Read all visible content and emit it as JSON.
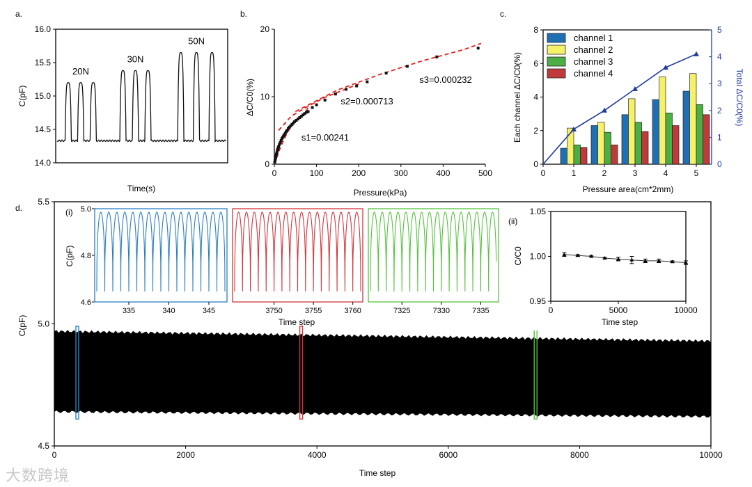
{
  "chart_data": [
    {
      "type": "line",
      "panel_label": "a.",
      "xlabel": "Time(s)",
      "ylabel": "C(pF)",
      "xlim": [
        0,
        55
      ],
      "ylim": [
        14.0,
        16.0
      ],
      "y_ticks": [
        "14.0",
        "14.5",
        "15.0",
        "15.5",
        "16.0"
      ],
      "baseline": 14.33,
      "peak_groups": [
        {
          "label": "20N",
          "times": [
            4,
            8,
            12
          ],
          "peak": 15.2
        },
        {
          "label": "30N",
          "times": [
            21.5,
            25.5,
            29.5
          ],
          "peak": 15.38
        },
        {
          "label": "50N",
          "times": [
            40,
            45,
            50
          ],
          "peak": 15.65
        }
      ]
    },
    {
      "type": "scatter",
      "panel_label": "b.",
      "xlabel": "Pressure(kPa)",
      "ylabel": "ΔC/C0(%)",
      "xlim": [
        0,
        500
      ],
      "ylim": [
        0,
        20
      ],
      "x_ticks": [
        "0",
        "100",
        "200",
        "300",
        "400",
        "500"
      ],
      "y_ticks": [
        "0",
        "10",
        "20"
      ],
      "points": {
        "x": [
          1,
          2,
          3,
          4,
          5,
          6,
          7,
          8,
          9,
          10,
          12,
          14,
          16,
          18,
          20,
          22,
          24,
          26,
          28,
          30,
          33,
          36,
          39,
          42,
          45,
          48,
          52,
          56,
          60,
          64,
          68,
          72,
          76,
          80,
          90,
          100,
          120,
          145,
          170,
          195,
          220,
          265,
          315,
          385,
          483
        ],
        "y": [
          0.3,
          0.6,
          0.9,
          1.2,
          1.5,
          1.7,
          2.0,
          2.2,
          2.4,
          2.6,
          2.9,
          3.2,
          3.5,
          3.8,
          4.0,
          4.2,
          4.4,
          4.6,
          4.8,
          5.0,
          5.3,
          5.5,
          5.7,
          5.9,
          6.1,
          6.3,
          6.5,
          6.7,
          6.9,
          7.1,
          7.3,
          7.5,
          7.7,
          7.8,
          8.4,
          8.8,
          9.5,
          10.4,
          11.1,
          11.6,
          12.2,
          13.5,
          14.5,
          15.9,
          17.2
        ]
      },
      "fit_segments": [
        {
          "label": "s1=0.00241",
          "x": [
            0,
            15,
            30,
            45,
            60,
            75,
            80
          ],
          "y": [
            0,
            2.6,
            4.6,
            6.1,
            7.0,
            7.8,
            8.4
          ]
        },
        {
          "label": "s2=0.000713",
          "x": [
            10,
            40,
            80,
            120,
            160,
            200
          ],
          "y": [
            5.0,
            7.1,
            8.6,
            9.9,
            10.9,
            11.9
          ]
        },
        {
          "label": "s3=0.000232",
          "x": [
            50,
            150,
            250,
            350,
            450,
            490
          ],
          "y": [
            7.8,
            11.0,
            13.3,
            15.3,
            17.0,
            17.9
          ]
        }
      ]
    },
    {
      "type": "bar",
      "panel_label": "c.",
      "xlabel": "Pressure area(cm*2mm)",
      "ylabel": "Each channel  ΔC/C0(%)",
      "y2label": "Total  ΔC/C0(%)",
      "xlim": [
        0,
        5.5
      ],
      "ylim": [
        0,
        8
      ],
      "y2lim": [
        0,
        5
      ],
      "x_ticks": [
        "0",
        "1",
        "2",
        "3",
        "4",
        "5"
      ],
      "y_ticks": [
        "0",
        "2",
        "4",
        "6",
        "8"
      ],
      "y2_ticks": [
        "0",
        "1",
        "2",
        "3",
        "4",
        "5"
      ],
      "categories": [
        1,
        2,
        3,
        4,
        5
      ],
      "legend_position": "top-left",
      "series": [
        {
          "name": "channel 1",
          "color": "#1f6fb5",
          "values": [
            0.95,
            2.3,
            2.95,
            3.85,
            4.35
          ]
        },
        {
          "name": "channel 2",
          "color": "#f5f26a",
          "values": [
            2.15,
            2.5,
            3.9,
            5.2,
            5.4
          ]
        },
        {
          "name": "channel 3",
          "color": "#4caf45",
          "values": [
            1.15,
            1.9,
            2.5,
            3.05,
            3.55
          ]
        },
        {
          "name": "channel 4",
          "color": "#c0393b",
          "values": [
            1.0,
            1.15,
            1.95,
            2.3,
            2.95
          ]
        }
      ],
      "total_line": {
        "color": "#1f3aa0",
        "x": [
          0,
          1,
          2,
          3,
          4,
          5
        ],
        "y": [
          0,
          1.3,
          2.0,
          2.8,
          3.6,
          4.1
        ]
      }
    },
    {
      "type": "line",
      "panel_label": "d.",
      "xlabel": "Time step",
      "ylabel": "C(pF)",
      "xlim": [
        0,
        10000
      ],
      "ylim": [
        4.5,
        5.5
      ],
      "x_ticks": [
        "0",
        "2000",
        "4000",
        "6000",
        "8000",
        "10000"
      ],
      "y_ticks": [
        "4.5",
        "5.0",
        "5.5"
      ],
      "band": {
        "upper_start": 4.97,
        "upper_end": 4.93,
        "lower_start": 4.64,
        "lower_end": 4.62
      },
      "highlights": [
        {
          "color": "#2a7fc0",
          "x": 350
        },
        {
          "color": "#d0363a",
          "x": 3760
        },
        {
          "color": "#55c23e",
          "x": 7330
        }
      ],
      "inset_i": {
        "label": "(i)",
        "xlabel": "Time step",
        "ylabel": "C(pF)",
        "y_ticks": [
          "4.6",
          "4.8",
          "5.0"
        ],
        "ylim": [
          4.6,
          5.0
        ],
        "panels": [
          {
            "color": "#2a7fc0",
            "xlim": [
              331,
              347
            ],
            "x_ticks": [
              "335",
              "340",
              "345"
            ],
            "x_tick_values": [
              335,
              340,
              345
            ]
          },
          {
            "color": "#d0363a",
            "xlim": [
              3745,
              3761
            ],
            "x_ticks": [
              "3750",
              "3755",
              "3760"
            ],
            "x_tick_values": [
              3750,
              3755,
              3760
            ]
          },
          {
            "color": "#55c23e",
            "xlim": [
              7321,
              7337
            ],
            "x_ticks": [
              "7325",
              "7330",
              "7335"
            ],
            "x_tick_values": [
              7325,
              7330,
              7335
            ]
          }
        ]
      },
      "inset_ii": {
        "label": "(ii)",
        "xlabel": "Time step",
        "ylabel": "C/C0",
        "xlim": [
          0,
          10000
        ],
        "ylim": [
          0.95,
          1.05
        ],
        "x_ticks": [
          "0",
          "5000",
          "10000"
        ],
        "y_ticks": [
          "0.95",
          "1.00",
          "1.05"
        ],
        "x": [
          1000,
          2000,
          3000,
          4000,
          5000,
          6000,
          7000,
          8000,
          9000,
          10000
        ],
        "y": [
          1.002,
          1.001,
          1.0,
          0.998,
          0.997,
          0.996,
          0.995,
          0.995,
          0.994,
          0.993
        ],
        "err": [
          0.002,
          0.001,
          0.001,
          0.001,
          0.002,
          0.004,
          0.002,
          0.002,
          0.001,
          0.002
        ]
      }
    }
  ],
  "watermark": "大数跨境"
}
